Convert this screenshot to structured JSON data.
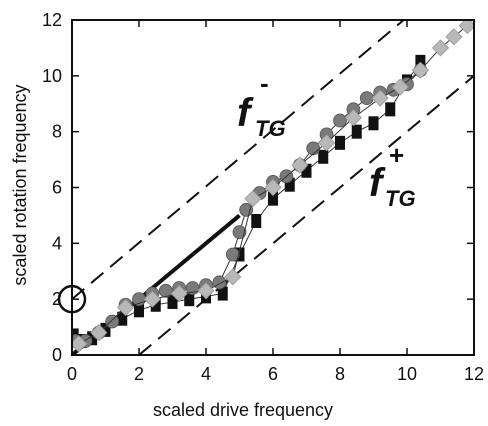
{
  "chart_data": {
    "type": "scatter",
    "xlabel": "scaled drive frequency",
    "ylabel": "scaled rotation frequency",
    "xlim": [
      0,
      12
    ],
    "ylim": [
      0,
      12
    ],
    "xticks": [
      "0",
      "2",
      "4",
      "6",
      "8",
      "10",
      "12"
    ],
    "yticks": [
      "0",
      "2",
      "4",
      "6",
      "8",
      "10",
      "12"
    ],
    "grid": false,
    "annotations": {
      "minus": {
        "base": "f",
        "sub": "TG",
        "sup": "-"
      },
      "plus": {
        "base": "f",
        "sub": "TG",
        "sup": "+"
      }
    },
    "reference_lines": [
      {
        "style": "dashed",
        "x": [
          0,
          9.9
        ],
        "y": [
          2,
          12
        ]
      },
      {
        "style": "dashed",
        "x": [
          2,
          12
        ],
        "y": [
          0,
          10
        ]
      },
      {
        "style": "solid-thick",
        "x": [
          0,
          5.0
        ],
        "y": [
          0,
          5.0
        ]
      }
    ],
    "marker_circle": {
      "x": 0,
      "y": 2
    },
    "colors": {
      "black_series": "#111111",
      "dark_gray_series": "#7a7a7a",
      "light_gray_series": "#b8b8b8"
    },
    "series": [
      {
        "marker": "square",
        "color": "#111111",
        "x": [
          0.05,
          0.3,
          0.6,
          1.0,
          1.5,
          2.0,
          2.5,
          3.0,
          3.5,
          4.0,
          4.5,
          5.0,
          5.5,
          6.0,
          6.5,
          7.0,
          7.5,
          8.0,
          8.5,
          9.0,
          9.5,
          10.0,
          10.4
        ],
        "y": [
          0.7,
          0.5,
          0.6,
          0.9,
          1.3,
          1.6,
          1.8,
          1.9,
          2.0,
          2.1,
          2.2,
          3.6,
          4.8,
          5.6,
          6.1,
          6.6,
          7.1,
          7.6,
          8.0,
          8.3,
          8.8,
          9.8,
          10.5
        ]
      },
      {
        "marker": "circle",
        "color": "#7a7a7a",
        "x": [
          0.1,
          0.4,
          0.8,
          1.2,
          1.6,
          2.0,
          2.4,
          2.8,
          3.2,
          3.6,
          4.0,
          4.4,
          4.8,
          5.0,
          5.2,
          5.6,
          6.0,
          6.4,
          6.8,
          7.2,
          7.6,
          8.0,
          8.4,
          8.8,
          9.2,
          9.6,
          10.0,
          10.4
        ],
        "y": [
          0.5,
          0.5,
          0.8,
          1.2,
          1.8,
          2.0,
          2.2,
          2.3,
          2.4,
          2.4,
          2.5,
          2.6,
          3.6,
          4.4,
          5.2,
          5.8,
          6.2,
          6.4,
          6.8,
          7.4,
          7.9,
          8.4,
          8.8,
          9.2,
          9.4,
          9.5,
          9.7,
          10.2
        ]
      },
      {
        "marker": "diamond",
        "color": "#b8b8b8",
        "x": [
          0.2,
          0.8,
          1.6,
          2.4,
          3.2,
          4.0,
          4.8,
          5.4,
          6.0,
          6.8,
          7.6,
          8.4,
          9.2,
          9.8,
          10.4,
          11.0,
          11.4,
          11.8
        ],
        "y": [
          0.4,
          0.8,
          1.7,
          2.0,
          2.2,
          2.3,
          2.8,
          5.6,
          6.0,
          6.8,
          7.6,
          8.5,
          9.2,
          9.6,
          10.2,
          11.0,
          11.4,
          11.8
        ]
      }
    ]
  }
}
